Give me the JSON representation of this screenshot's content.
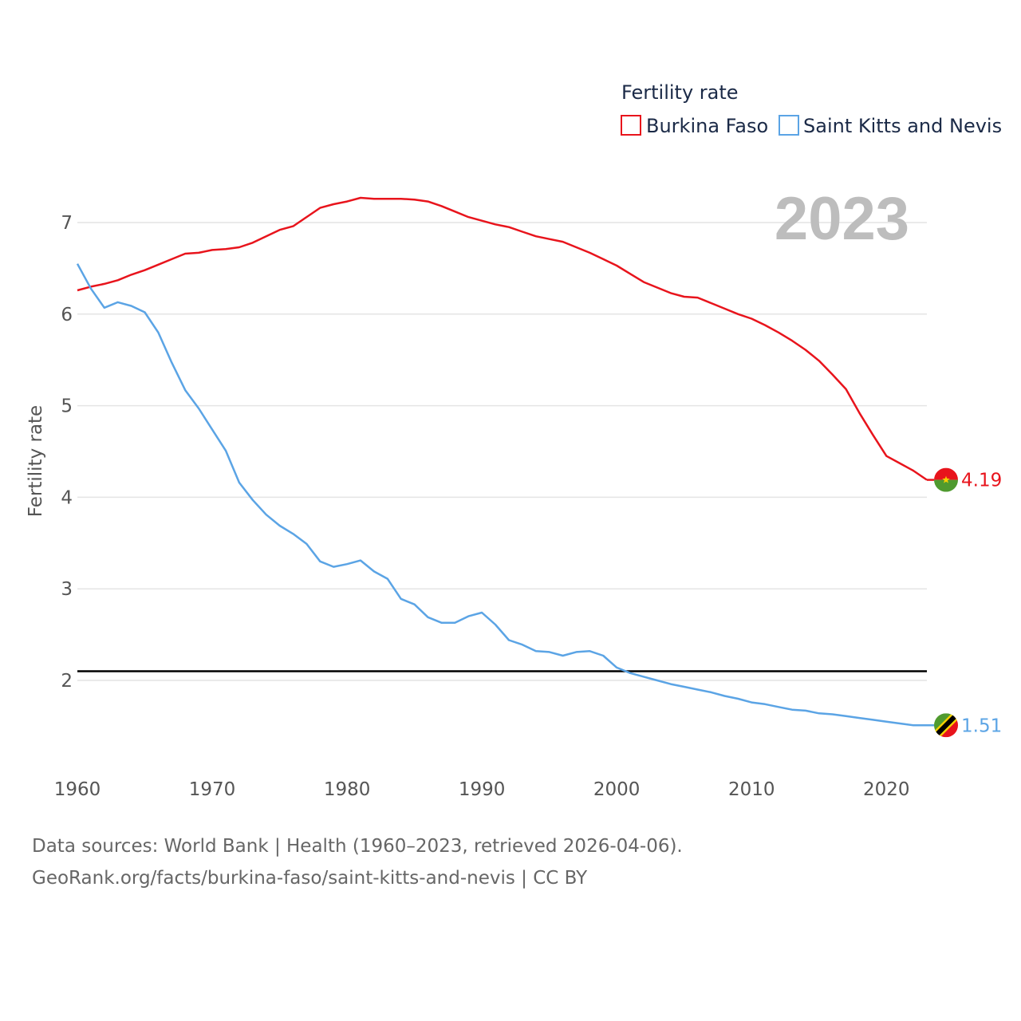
{
  "chart_data": {
    "type": "line",
    "title": "Fertility rate",
    "year_label": "2023",
    "ylabel": "Fertility rate",
    "xlabel": "",
    "xlim": [
      1960,
      2023
    ],
    "ylim": [
      1.0,
      7.6
    ],
    "x_ticks": [
      1960,
      1970,
      1980,
      1990,
      2000,
      2010,
      2020
    ],
    "y_ticks": [
      2,
      3,
      4,
      5,
      6,
      7
    ],
    "reference_line": {
      "value": 2.1,
      "color": "#000000"
    },
    "grid": true,
    "legend_position": "top-right",
    "x": [
      1960,
      1961,
      1962,
      1963,
      1964,
      1965,
      1966,
      1967,
      1968,
      1969,
      1970,
      1971,
      1972,
      1973,
      1974,
      1975,
      1976,
      1977,
      1978,
      1979,
      1980,
      1981,
      1982,
      1983,
      1984,
      1985,
      1986,
      1987,
      1988,
      1989,
      1990,
      1991,
      1992,
      1993,
      1994,
      1995,
      1996,
      1997,
      1998,
      1999,
      2000,
      2001,
      2002,
      2003,
      2004,
      2005,
      2006,
      2007,
      2008,
      2009,
      2010,
      2011,
      2012,
      2013,
      2014,
      2015,
      2016,
      2017,
      2018,
      2019,
      2020,
      2021,
      2022,
      2023
    ],
    "series": [
      {
        "name": "Burkina Faso",
        "color": "#e8141c",
        "end_label": "4.19",
        "values": [
          6.26,
          6.3,
          6.33,
          6.37,
          6.43,
          6.48,
          6.54,
          6.6,
          6.66,
          6.67,
          6.7,
          6.71,
          6.73,
          6.78,
          6.85,
          6.92,
          6.96,
          7.06,
          7.16,
          7.2,
          7.23,
          7.27,
          7.26,
          7.26,
          7.26,
          7.25,
          7.23,
          7.18,
          7.12,
          7.06,
          7.02,
          6.98,
          6.95,
          6.9,
          6.85,
          6.82,
          6.79,
          6.73,
          6.67,
          6.6,
          6.53,
          6.44,
          6.35,
          6.29,
          6.23,
          6.19,
          6.18,
          6.12,
          6.06,
          6.0,
          5.95,
          5.88,
          5.8,
          5.71,
          5.61,
          5.49,
          5.34,
          5.18,
          4.92,
          4.68,
          4.45,
          4.37,
          4.29,
          4.19
        ]
      },
      {
        "name": "Saint Kitts and Nevis",
        "color": "#5ba4e5",
        "end_label": "1.51",
        "values": [
          6.55,
          6.28,
          6.07,
          6.13,
          6.09,
          6.02,
          5.8,
          5.47,
          5.17,
          4.97,
          4.74,
          4.51,
          4.16,
          3.97,
          3.81,
          3.69,
          3.6,
          3.49,
          3.3,
          3.24,
          3.27,
          3.31,
          3.19,
          3.11,
          2.89,
          2.83,
          2.69,
          2.63,
          2.63,
          2.7,
          2.74,
          2.61,
          2.44,
          2.39,
          2.32,
          2.31,
          2.27,
          2.31,
          2.32,
          2.27,
          2.14,
          2.08,
          2.04,
          2.0,
          1.96,
          1.93,
          1.9,
          1.87,
          1.83,
          1.8,
          1.76,
          1.74,
          1.71,
          1.68,
          1.67,
          1.64,
          1.63,
          1.61,
          1.59,
          1.57,
          1.55,
          1.53,
          1.51,
          1.51
        ]
      }
    ],
    "flags": [
      {
        "name": "burkina-faso-flag-icon",
        "top": "#e8141c",
        "bottom": "#4f9a2f",
        "star": "#f5d000"
      },
      {
        "name": "saint-kitts-and-nevis-flag-icon",
        "top": "#4f9a2f",
        "bottom": "#e8141c",
        "band": "#f5d000",
        "stripe": "#000000"
      }
    ]
  },
  "source": {
    "line1": "Data sources: World Bank | Health (1960–2023, retrieved 2026-04-06).",
    "line2": "GeoRank.org/facts/burkina-faso/saint-kitts-and-nevis | CC BY"
  }
}
